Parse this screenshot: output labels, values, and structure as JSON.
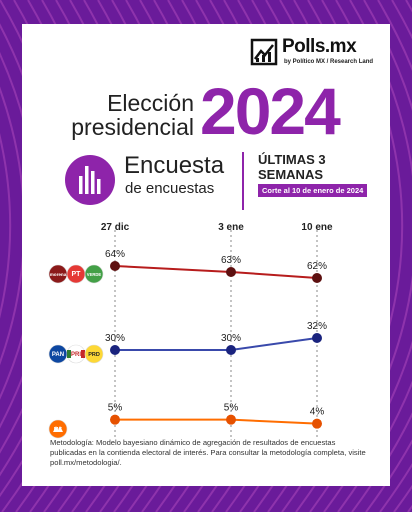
{
  "brand": {
    "name": "Polls.mx",
    "byline": "by Político MX / Research Land"
  },
  "title": {
    "line1": "Elección",
    "line2": "presidencial",
    "year": "2024"
  },
  "survey": {
    "title": "Encuesta",
    "subtitle": "de encuestas",
    "weeks": "ÚLTIMAS 3 SEMANAS",
    "cutoff": "Corte al 10 de enero de 2024"
  },
  "footnote": "Metodología: Modelo bayesiano dinámico de agregación de resultados de encuestas publicadas en la contienda electoral de interés. Para consultar la metodología completa, visite poll.mx/metodologia/.",
  "colors": {
    "accent": "#8e24aa",
    "morena_line": "#b71c1c",
    "morena_dot": "#5d1010",
    "frente_line": "#3949ab",
    "frente_dot": "#1a237e",
    "mc_line": "#ff6d00",
    "mc_dot": "#e65100"
  },
  "chart_data": {
    "type": "line",
    "categories": [
      "27 dic",
      "3 ene",
      "10 ene"
    ],
    "value_suffix": "%",
    "series": [
      {
        "name": "morena PT PVEM",
        "icons": [
          "morena",
          "PT",
          "VERDE"
        ],
        "values": [
          64,
          63,
          62
        ]
      },
      {
        "name": "PAN PRI PRD",
        "icons": [
          "PAN",
          "PRI",
          "PRD"
        ],
        "values": [
          30,
          30,
          32
        ]
      },
      {
        "name": "Movimiento Ciudadano",
        "icons": [
          "MC"
        ],
        "values": [
          5,
          5,
          4
        ]
      }
    ]
  }
}
